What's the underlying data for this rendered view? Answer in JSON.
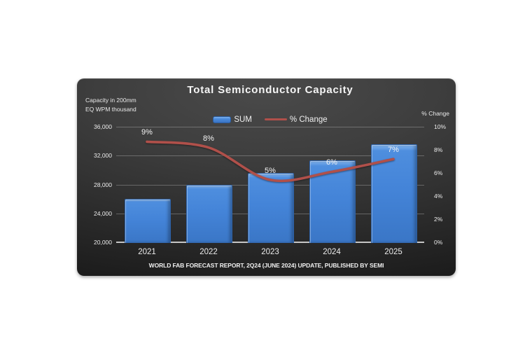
{
  "chart_data": {
    "type": "combo-bar-line",
    "title": "Total Semiconductor Capacity",
    "left_axis_title": [
      "Capacity in 200mm",
      "EQ WPM thousand"
    ],
    "right_axis_title": "% Change",
    "categories": [
      "2021",
      "2022",
      "2023",
      "2024",
      "2025"
    ],
    "series": [
      {
        "name": "SUM",
        "type": "bar",
        "axis": "left",
        "color": "#4484d8",
        "values": [
          26000,
          28000,
          29600,
          31300,
          33600
        ]
      },
      {
        "name": "% Change",
        "type": "line",
        "axis": "right",
        "color": "#b0504a",
        "values": [
          8.7,
          8.2,
          5.4,
          6.1,
          7.2
        ],
        "labels": [
          "9%",
          "8%",
          "5%",
          "6%",
          "7%"
        ]
      }
    ],
    "left_axis": {
      "min": 20000,
      "max": 36000,
      "tick_labels": [
        "36,000",
        "32,000",
        "28,000",
        "24,000",
        "20,000"
      ]
    },
    "right_axis": {
      "min": 0,
      "max": 10,
      "tick_labels": [
        "10%",
        "8%",
        "6%",
        "4%",
        "2%",
        "0%"
      ]
    },
    "legend": {
      "position": "top-center",
      "entries": [
        "SUM",
        "% Change"
      ]
    },
    "grid": "horizontal",
    "footer": "WORLD FAB FORECAST REPORT, 2Q24 (JUNE 2024) UPDATE, PUBLISHED BY SEMI",
    "colors": {
      "panel_background_center": "#454545",
      "panel_background_edge": "#1c1c1c",
      "bar_fill": "#4484d8",
      "line": "#b0504a",
      "text": "#ececec",
      "page_background": "#ffffff"
    }
  }
}
